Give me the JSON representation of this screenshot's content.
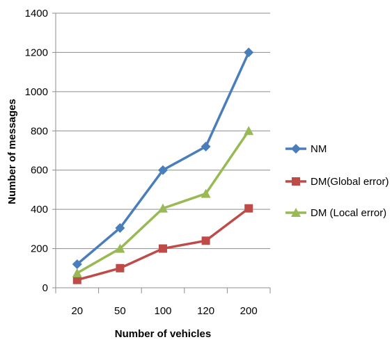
{
  "chart_data": {
    "type": "line",
    "categories": [
      "20",
      "50",
      "100",
      "120",
      "200"
    ],
    "series": [
      {
        "name": "NM",
        "values": [
          120,
          305,
          600,
          720,
          1200
        ],
        "color": "#4a7ebb",
        "marker": "diamond"
      },
      {
        "name": "DM(Global error)",
        "values": [
          40,
          100,
          200,
          240,
          405
        ],
        "color": "#be4b48",
        "marker": "square"
      },
      {
        "name": "DM (Local error)",
        "values": [
          75,
          200,
          405,
          480,
          800
        ],
        "color": "#98b954",
        "marker": "triangle"
      }
    ],
    "xlabel": "Number of vehicles",
    "ylabel": "Number of messages",
    "ylim": [
      0,
      1400
    ],
    "yticks": [
      0,
      200,
      400,
      600,
      800,
      1000,
      1200,
      1400
    ],
    "grid": true,
    "legend": "right"
  }
}
